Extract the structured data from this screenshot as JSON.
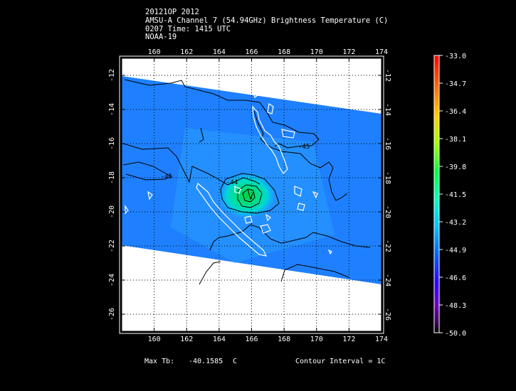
{
  "header": {
    "line1": "20121OP 2012",
    "line2": "AMSU-A Channel 7 (54.94GHz) Brightness Temperature (C)",
    "line3": "0207 Time: 1415 UTC",
    "line4": "NOAA-19"
  },
  "map": {
    "lon_range": [
      158,
      174
    ],
    "lat_range": [
      -27,
      -11
    ],
    "lon_ticks": [
      "160",
      "162",
      "164",
      "166",
      "168",
      "170",
      "172",
      "174"
    ],
    "lat_ticks": [
      "-12",
      "-14",
      "-16",
      "-18",
      "-20",
      "-22",
      "-24",
      "-26"
    ],
    "contour_labels": [
      "-45",
      "-45",
      "-44"
    ],
    "swath_color": "#1e78ff",
    "coast_color": "#ffffff",
    "contour_color": "#000000"
  },
  "colorbar": {
    "ticks": [
      "-33.0",
      "-34.7",
      "-36.4",
      "-38.1",
      "-39.8",
      "-41.5",
      "-43.2",
      "-44.9",
      "-46.6",
      "-48.3",
      "-50.0"
    ],
    "min": -50.0,
    "max": -33.0
  },
  "footer": {
    "max_tb_label": "Max Tb:",
    "max_tb_value": "-40.1585",
    "max_tb_unit": "C",
    "contour_interval": "Contour Interval = 1C"
  }
}
